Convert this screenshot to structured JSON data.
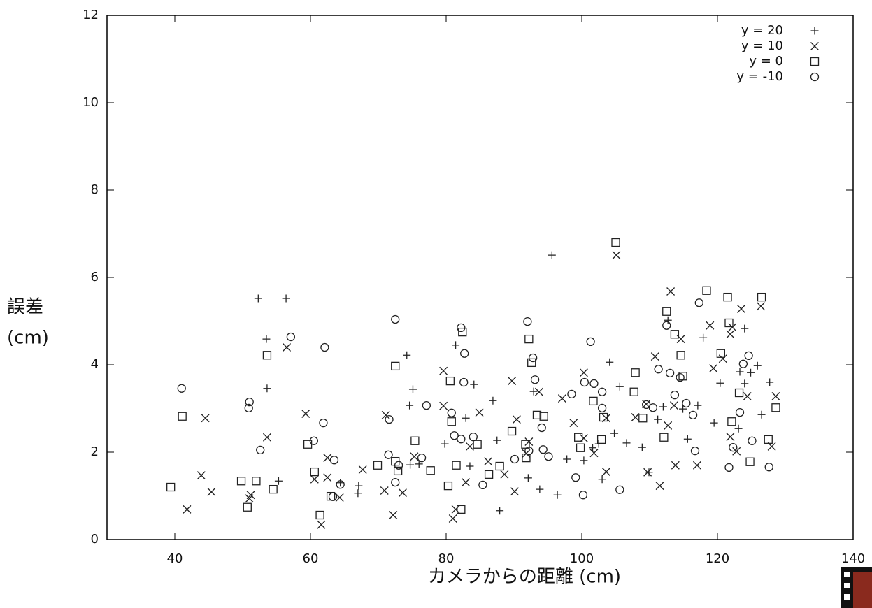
{
  "chart_data": {
    "type": "scatter",
    "xlabel": "カメラからの距離 (cm)",
    "ylabel": [
      "誤差",
      "(cm)"
    ],
    "xlim": [
      30,
      140
    ],
    "ylim": [
      0,
      12
    ],
    "xticks": [
      40,
      60,
      80,
      100,
      120,
      140
    ],
    "yticks": [
      0,
      2,
      4,
      6,
      8,
      10,
      12
    ],
    "legend": "top-right",
    "series": [
      {
        "name": "y = 20",
        "marker": "plus",
        "color": "#222222",
        "x": [
          52.3,
          56.4,
          53.5,
          53.6,
          55.3,
          64.4,
          67.0,
          67.1,
          74.2,
          75.1,
          74.6,
          76.0,
          74.7,
          79.8,
          81.4,
          82.9,
          84.1,
          83.5,
          86.9,
          87.5,
          87.9,
          92.1,
          92.9,
          93.8,
          95.6,
          96.4,
          97.8,
          100.3,
          101.6,
          102.5,
          103.0,
          104.1,
          105.6,
          104.8,
          106.6,
          108.9,
          111.2,
          112.0,
          109.9,
          112.7,
          114.9,
          115.6,
          117.1,
          117.9,
          119.5,
          120.4,
          123.3,
          124.0,
          124.9,
          125.9,
          126.5,
          127.7,
          123.1,
          124.0
        ],
        "values": [
          5.52,
          5.52,
          4.59,
          3.46,
          1.34,
          1.3,
          1.06,
          1.23,
          4.22,
          3.44,
          3.07,
          1.73,
          1.71,
          2.19,
          4.45,
          2.78,
          3.55,
          1.68,
          3.18,
          2.27,
          0.66,
          1.41,
          3.39,
          1.15,
          6.51,
          1.02,
          1.84,
          1.81,
          2.1,
          2.19,
          1.38,
          4.06,
          3.5,
          2.43,
          2.21,
          2.11,
          2.75,
          3.04,
          1.54,
          5.02,
          2.99,
          2.3,
          3.07,
          4.62,
          2.67,
          3.58,
          3.84,
          4.83,
          3.82,
          3.98,
          2.86,
          3.6,
          2.54,
          3.57
        ]
      },
      {
        "name": "y = 10",
        "marker": "cross",
        "color": "#222222",
        "x": [
          41.8,
          43.9,
          44.5,
          45.4,
          51.2,
          51.0,
          53.6,
          56.5,
          59.3,
          60.6,
          61.6,
          62.5,
          62.5,
          64.3,
          67.7,
          70.9,
          71.1,
          72.2,
          73.6,
          75.3,
          79.6,
          79.6,
          81.0,
          81.4,
          82.9,
          83.5,
          84.9,
          86.2,
          88.6,
          89.7,
          90.1,
          90.4,
          91.8,
          92.2,
          93.7,
          97.1,
          98.8,
          100.3,
          100.3,
          101.8,
          103.6,
          103.6,
          105.1,
          107.9,
          109.5,
          109.7,
          110.8,
          111.5,
          112.7,
          113.1,
          113.6,
          113.8,
          114.6,
          117.0,
          118.9,
          119.4,
          120.8,
          121.9,
          121.9,
          122.2,
          122.8,
          123.5,
          124.4,
          126.4,
          128.0,
          128.6
        ],
        "values": [
          0.69,
          1.47,
          2.78,
          1.09,
          1.02,
          0.94,
          2.34,
          4.4,
          2.88,
          1.38,
          0.34,
          1.87,
          1.42,
          0.96,
          1.6,
          1.12,
          2.85,
          0.56,
          1.07,
          1.9,
          3.86,
          3.06,
          0.48,
          0.69,
          1.31,
          2.13,
          2.91,
          1.79,
          1.49,
          3.63,
          1.1,
          2.75,
          1.97,
          2.24,
          3.38,
          3.23,
          2.67,
          3.82,
          2.32,
          1.98,
          2.78,
          1.55,
          6.51,
          2.8,
          3.1,
          1.54,
          4.19,
          1.23,
          2.61,
          5.68,
          3.07,
          1.7,
          4.59,
          1.7,
          4.9,
          3.92,
          4.14,
          4.7,
          2.35,
          4.86,
          2.02,
          5.28,
          3.28,
          5.34,
          2.13,
          3.28
        ]
      },
      {
        "name": "y = 0",
        "marker": "square",
        "color": "#222222",
        "x": [
          39.4,
          41.1,
          49.8,
          50.7,
          52.0,
          53.6,
          54.5,
          59.6,
          60.6,
          61.4,
          63.0,
          69.9,
          72.5,
          72.5,
          72.9,
          75.4,
          77.7,
          80.3,
          80.6,
          80.8,
          81.5,
          82.2,
          82.4,
          84.6,
          86.3,
          87.9,
          89.7,
          91.7,
          91.8,
          92.2,
          92.6,
          93.4,
          94.4,
          99.5,
          99.8,
          101.7,
          102.9,
          103.2,
          105.0,
          107.7,
          107.9,
          109.0,
          112.1,
          112.5,
          113.7,
          114.6,
          114.9,
          118.4,
          120.5,
          121.5,
          121.7,
          122.1,
          123.2,
          124.8,
          126.5,
          127.5,
          128.6
        ],
        "values": [
          1.2,
          2.82,
          1.34,
          0.74,
          1.34,
          4.22,
          1.15,
          2.18,
          1.55,
          0.56,
          0.99,
          1.7,
          3.97,
          1.79,
          1.57,
          2.26,
          1.58,
          1.23,
          3.63,
          2.7,
          1.7,
          0.69,
          4.75,
          2.18,
          1.49,
          1.68,
          2.48,
          2.18,
          1.87,
          4.59,
          4.05,
          2.85,
          2.82,
          2.34,
          2.1,
          3.17,
          2.29,
          2.8,
          6.8,
          3.38,
          3.82,
          2.78,
          2.34,
          5.22,
          4.7,
          4.22,
          3.74,
          5.7,
          4.26,
          5.55,
          4.96,
          2.7,
          3.36,
          1.78,
          5.55,
          2.29,
          3.02
        ]
      },
      {
        "name": "y = -10",
        "marker": "circle",
        "color": "#222222",
        "x": [
          41.0,
          51.0,
          50.9,
          52.6,
          57.1,
          60.5,
          61.9,
          62.1,
          63.5,
          63.3,
          64.4,
          71.5,
          71.6,
          72.5,
          72.5,
          73.0,
          76.4,
          77.1,
          80.8,
          81.2,
          82.2,
          82.2,
          82.6,
          82.7,
          84.0,
          85.4,
          90.1,
          92.0,
          92.2,
          92.8,
          93.1,
          94.1,
          94.3,
          95.1,
          98.5,
          99.1,
          100.2,
          100.4,
          101.3,
          101.8,
          103.0,
          103.0,
          105.6,
          109.5,
          110.5,
          111.3,
          112.5,
          113.0,
          113.7,
          114.5,
          115.4,
          116.4,
          116.7,
          117.3,
          121.7,
          122.3,
          123.3,
          123.8,
          124.6,
          125.1,
          127.6
        ],
        "values": [
          3.46,
          3.15,
          3.01,
          2.05,
          4.64,
          2.26,
          2.67,
          4.4,
          1.82,
          0.98,
          1.26,
          1.94,
          2.75,
          5.04,
          1.31,
          1.7,
          1.87,
          3.07,
          2.9,
          2.38,
          4.85,
          2.3,
          3.6,
          4.26,
          2.35,
          1.25,
          1.84,
          4.99,
          2.03,
          4.16,
          3.66,
          2.56,
          2.06,
          1.9,
          3.33,
          1.42,
          1.02,
          3.6,
          4.53,
          3.57,
          3.38,
          3.01,
          1.14,
          3.09,
          3.02,
          3.9,
          4.9,
          3.81,
          3.31,
          3.71,
          3.12,
          2.85,
          2.03,
          5.42,
          1.65,
          2.11,
          2.91,
          4.02,
          4.21,
          2.26,
          1.66
        ]
      }
    ]
  }
}
